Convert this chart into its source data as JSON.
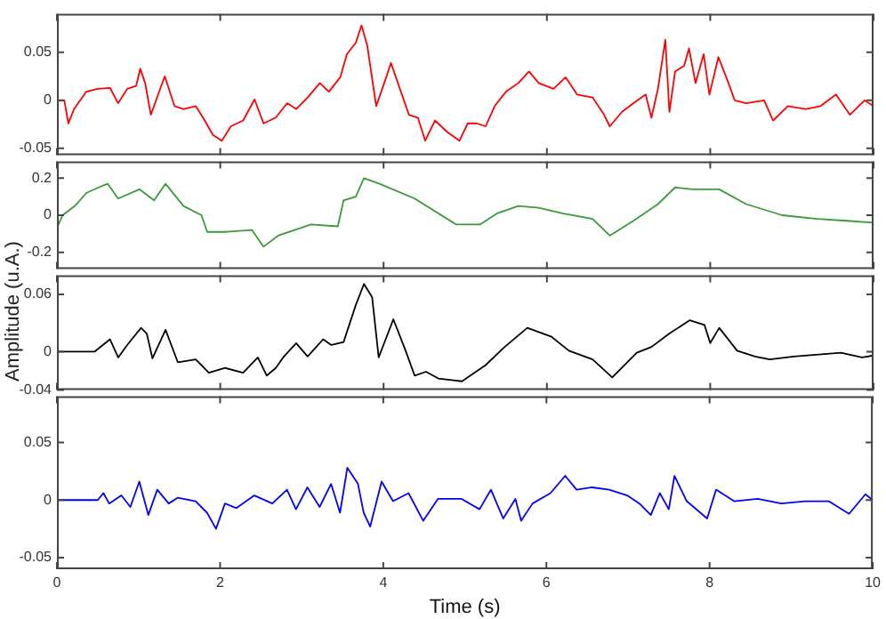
{
  "chart_data": [
    {
      "type": "line",
      "color": "#ff0000",
      "xlim": [
        0,
        10
      ],
      "xticks": [
        0,
        2,
        4,
        6,
        8,
        10
      ],
      "ylim": [
        -0.057,
        0.09
      ],
      "yticks": [
        -0.05,
        0,
        0.05
      ],
      "tick_labels": "y",
      "x": [
        0,
        0.09,
        0.14,
        0.21,
        0.36,
        0.5,
        0.65,
        0.75,
        0.86,
        0.97,
        1.02,
        1.08,
        1.15,
        1.32,
        1.44,
        1.55,
        1.7,
        1.81,
        1.91,
        2.02,
        2.13,
        2.28,
        2.42,
        2.53,
        2.68,
        2.82,
        2.93,
        3.07,
        3.22,
        3.33,
        3.47,
        3.55,
        3.66,
        3.73,
        3.8,
        3.91,
        4.02,
        4.09,
        4.2,
        4.31,
        4.42,
        4.51,
        4.63,
        4.78,
        4.93,
        5.03,
        5.14,
        5.25,
        5.36,
        5.5,
        5.65,
        5.78,
        5.9,
        6.08,
        6.23,
        6.37,
        6.56,
        6.7,
        6.77,
        6.92,
        7.06,
        7.21,
        7.28,
        7.36,
        7.45,
        7.5,
        7.57,
        7.68,
        7.74,
        7.82,
        7.92,
        7.99,
        8.1,
        8.21,
        8.3,
        8.44,
        8.66,
        8.77,
        8.95,
        9.17,
        9.35,
        9.54,
        9.71,
        9.89,
        10
      ],
      "values": [
        0,
        0,
        -0.024,
        -0.009,
        0.009,
        0.012,
        0.013,
        -0.003,
        0.012,
        0.015,
        0.033,
        0.018,
        -0.015,
        0.025,
        -0.006,
        -0.009,
        -0.006,
        -0.021,
        -0.036,
        -0.042,
        -0.027,
        -0.021,
        0.001,
        -0.024,
        -0.018,
        -0.003,
        -0.009,
        0.003,
        0.018,
        0.009,
        0.024,
        0.048,
        0.06,
        0.078,
        0.057,
        -0.006,
        0.021,
        0.039,
        0.012,
        -0.015,
        -0.018,
        -0.042,
        -0.021,
        -0.033,
        -0.042,
        -0.024,
        -0.024,
        -0.027,
        -0.006,
        0.009,
        0.018,
        0.03,
        0.018,
        0.012,
        0.024,
        0.006,
        0.003,
        -0.015,
        -0.027,
        -0.012,
        -0.003,
        0.006,
        -0.018,
        0.012,
        0.063,
        -0.012,
        0.03,
        0.036,
        0.054,
        0.018,
        0.048,
        0.006,
        0.045,
        0.021,
        0,
        -0.003,
        0,
        -0.021,
        -0.006,
        -0.009,
        -0.006,
        0.006,
        -0.015,
        0,
        -0.006
      ]
    },
    {
      "type": "line",
      "color": "#3a9a3a",
      "xlim": [
        0,
        10
      ],
      "xticks": [
        0,
        2,
        4,
        6,
        8,
        10
      ],
      "ylim": [
        -0.29,
        0.29
      ],
      "yticks": [
        -0.2,
        0,
        0.2
      ],
      "tick_labels": "y",
      "x": [
        0,
        0.07,
        0.22,
        0.36,
        0.51,
        0.62,
        0.75,
        1.01,
        1.19,
        1.33,
        1.55,
        1.77,
        1.84,
        2.06,
        2.39,
        2.53,
        2.71,
        3.11,
        3.44,
        3.51,
        3.66,
        3.76,
        3.95,
        4.38,
        4.89,
        5.18,
        5.39,
        5.65,
        5.9,
        6.19,
        6.56,
        6.77,
        7.06,
        7.36,
        7.57,
        7.79,
        8.11,
        8.44,
        8.88,
        9.31,
        9.67,
        10
      ],
      "values": [
        -0.07,
        0,
        0.05,
        0.12,
        0.15,
        0.17,
        0.09,
        0.14,
        0.08,
        0.17,
        0.05,
        0,
        -0.09,
        -0.09,
        -0.08,
        -0.17,
        -0.11,
        -0.05,
        -0.06,
        0.08,
        0.1,
        0.2,
        0.17,
        0.09,
        -0.05,
        -0.05,
        0.01,
        0.05,
        0.04,
        0.01,
        -0.02,
        -0.11,
        -0.03,
        0.06,
        0.15,
        0.14,
        0.14,
        0.06,
        0,
        -0.02,
        -0.03,
        -0.04
      ]
    },
    {
      "type": "line",
      "color": "#000000",
      "xlim": [
        0,
        10
      ],
      "xticks": [
        0,
        2,
        4,
        6,
        8,
        10
      ],
      "ylim": [
        -0.04,
        0.08
      ],
      "yticks": [
        -0.04,
        0,
        0.06
      ],
      "tick_labels": "y",
      "ylabel": "Amplitude (u.A.)",
      "x": [
        0,
        0.46,
        0.65,
        0.75,
        0.86,
        1.03,
        1.1,
        1.17,
        1.33,
        1.48,
        1.7,
        1.86,
        2.06,
        2.28,
        2.46,
        2.57,
        2.68,
        2.78,
        2.93,
        3.07,
        3.26,
        3.36,
        3.51,
        3.66,
        3.76,
        3.86,
        3.94,
        4.12,
        4.27,
        4.38,
        4.52,
        4.67,
        4.96,
        5.25,
        5.47,
        5.76,
        6.05,
        6.27,
        6.56,
        6.8,
        7.1,
        7.28,
        7.5,
        7.75,
        7.93,
        8,
        8.11,
        8.33,
        8.55,
        8.73,
        9.02,
        9.6,
        9.86,
        10
      ],
      "values": [
        0,
        0,
        0.013,
        -0.006,
        0.007,
        0.025,
        0.019,
        -0.007,
        0.023,
        -0.011,
        -0.008,
        -0.022,
        -0.017,
        -0.022,
        -0.006,
        -0.025,
        -0.017,
        -0.005,
        0.009,
        -0.005,
        0.013,
        0.007,
        0.01,
        0.049,
        0.071,
        0.057,
        -0.006,
        0.034,
        0.001,
        -0.025,
        -0.021,
        -0.028,
        -0.031,
        -0.014,
        0.004,
        0.025,
        0.016,
        0.001,
        -0.008,
        -0.027,
        -0.001,
        0.005,
        0.019,
        0.033,
        0.028,
        0.009,
        0.025,
        0.001,
        -0.005,
        -0.008,
        -0.005,
        -0.001,
        -0.006,
        -0.004
      ]
    },
    {
      "type": "line",
      "color": "#0000ff",
      "xlim": [
        0,
        10
      ],
      "xticks": [
        0,
        2,
        4,
        6,
        8,
        10
      ],
      "ylim": [
        -0.06,
        0.09
      ],
      "yticks": [
        -0.05,
        0,
        0.05
      ],
      "xlabel": "Time (s)",
      "x": [
        0,
        0.5,
        0.57,
        0.64,
        0.79,
        0.9,
        1.01,
        1.12,
        1.23,
        1.37,
        1.48,
        1.7,
        1.84,
        1.95,
        2.06,
        2.2,
        2.42,
        2.64,
        2.82,
        2.93,
        3.07,
        3.22,
        3.36,
        3.47,
        3.56,
        3.69,
        3.76,
        3.84,
        3.98,
        4.12,
        4.31,
        4.49,
        4.67,
        4.96,
        5.18,
        5.32,
        5.47,
        5.62,
        5.69,
        5.83,
        6.05,
        6.23,
        6.37,
        6.56,
        6.77,
        6.99,
        7.14,
        7.28,
        7.39,
        7.5,
        7.57,
        7.72,
        7.97,
        8.08,
        8.3,
        8.59,
        8.88,
        9.17,
        9.46,
        9.71,
        9.91,
        10
      ],
      "values": [
        0,
        0,
        0.006,
        -0.003,
        0.004,
        -0.006,
        0.016,
        -0.013,
        0.009,
        -0.003,
        0.002,
        -0.001,
        -0.011,
        -0.025,
        -0.003,
        -0.007,
        0.004,
        -0.003,
        0.009,
        -0.008,
        0.011,
        -0.006,
        0.014,
        -0.011,
        0.028,
        0.014,
        -0.011,
        -0.023,
        0.016,
        -0.001,
        0.006,
        -0.018,
        0.001,
        0.001,
        -0.008,
        0.009,
        -0.016,
        0.001,
        -0.018,
        -0.003,
        0.006,
        0.021,
        0.009,
        0.011,
        0.009,
        0.004,
        -0.003,
        -0.013,
        0.006,
        -0.008,
        0.021,
        -0.001,
        -0.016,
        0.009,
        -0.001,
        0.001,
        -0.003,
        -0.001,
        -0.001,
        -0.012,
        0.005,
        0
      ]
    }
  ]
}
